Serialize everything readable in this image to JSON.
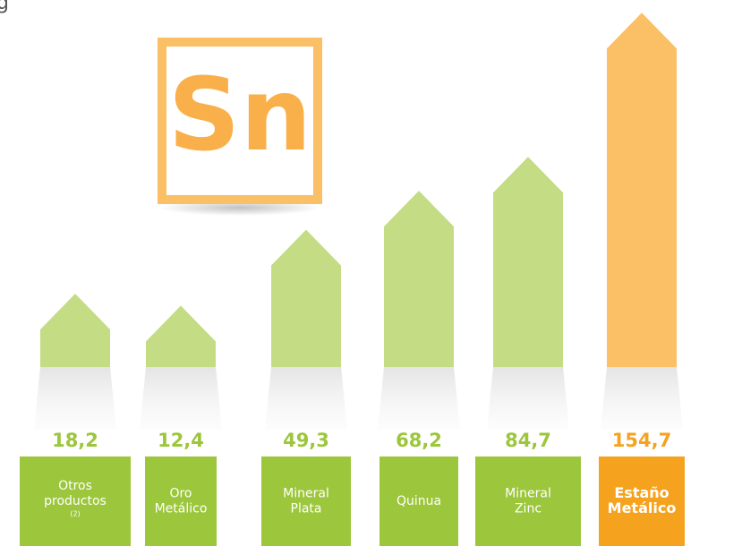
{
  "header_fragment": "g",
  "logo": "Sn",
  "chart_data": {
    "type": "arrow-bar",
    "categories": [
      [
        "Otros",
        "productos",
        "(2)"
      ],
      [
        "Oro",
        "Metálico"
      ],
      [
        "Mineral",
        "Plata"
      ],
      [
        "Quinua"
      ],
      [
        "Mineral",
        "Zinc"
      ],
      [
        "Estaño",
        "Metálico"
      ]
    ],
    "values": [
      18.2,
      12.4,
      49.3,
      68.2,
      84.7,
      154.7
    ],
    "value_labels": [
      "18,2",
      "12,4",
      "49,3",
      "68,2",
      "84,7",
      "154,7"
    ],
    "colors": [
      "#c4dc84",
      "#c4dc84",
      "#c4dc84",
      "#c4dc84",
      "#c4dc84",
      "#fbbf66"
    ],
    "box_colors": [
      "#9cc63b",
      "#9cc63b",
      "#9cc63b",
      "#9cc63b",
      "#9cc63b",
      "#f5a21f"
    ],
    "highlight_index": 5
  }
}
